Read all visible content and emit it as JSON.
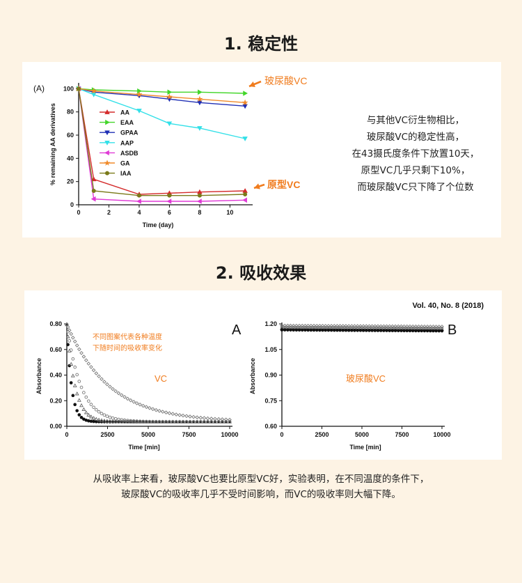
{
  "section1": {
    "title": "1. 稳定性"
  },
  "section2": {
    "title": "2. 吸收效果"
  },
  "description": [
    "与其他VC衍生物相比，",
    "玻尿酸VC的稳定性高，",
    "在43摄氏度条件下放置10天，",
    "原型VC几乎只剩下10%，",
    "而玻尿酸VC只下降了个位数"
  ],
  "footer": [
    "从吸收率上来看，玻尿酸VC也要比原型VC好，实验表明，在不同温度的条件下，",
    "玻尿酸VC的吸收率几乎不受时间影响，而VC的吸收率则大幅下降。"
  ],
  "colors": {
    "accent": "#f07c1e",
    "background": "#fdf3e4"
  },
  "chart_data": [
    {
      "type": "line",
      "panel_label": "(A)",
      "xlabel": "Time (day)",
      "ylabel": "% remaining AA derivatives",
      "x": [
        0,
        1,
        4,
        6,
        8,
        11
      ],
      "xlim": [
        0,
        11.5
      ],
      "ylim": [
        0,
        105
      ],
      "xticks": [
        "0",
        "2",
        "4",
        "6",
        "8",
        "10"
      ],
      "yticks": [
        "0",
        "20",
        "40",
        "60",
        "80",
        "100"
      ],
      "legend_position": "center-left",
      "series": [
        {
          "name": "AA",
          "color": "#d42b2b",
          "marker": "triangle-up",
          "values": [
            100,
            22,
            9,
            10,
            11,
            12
          ]
        },
        {
          "name": "EAA",
          "color": "#43d62a",
          "marker": "triangle-right",
          "values": [
            100,
            99,
            98,
            97,
            97,
            96
          ]
        },
        {
          "name": "GPAA",
          "color": "#1f2fb5",
          "marker": "triangle-down",
          "values": [
            100,
            97,
            94,
            91,
            88,
            85
          ]
        },
        {
          "name": "AAP",
          "color": "#33e0e8",
          "marker": "triangle-down",
          "values": [
            100,
            95,
            81,
            70,
            66,
            57
          ]
        },
        {
          "name": "ASDB",
          "color": "#e03bd6",
          "marker": "triangle-left",
          "values": [
            100,
            5,
            3,
            3,
            3,
            4
          ]
        },
        {
          "name": "GA",
          "color": "#f08a2a",
          "marker": "star",
          "values": [
            100,
            98,
            95,
            93,
            91,
            88
          ]
        },
        {
          "name": "IAA",
          "color": "#7a7a1a",
          "marker": "circle",
          "values": [
            100,
            12,
            8,
            8,
            8,
            9
          ]
        }
      ],
      "annotations": {
        "top_arrow_label": "玻尿酸VC",
        "bottom_arrow_label": "原型VC"
      }
    },
    {
      "type": "scatter",
      "panel_label": "A",
      "journal_ref": "Vol. 40, No. 8 (2018)",
      "xlabel": "Time [min]",
      "ylabel": "Absorbance",
      "xlim": [
        0,
        10000
      ],
      "ylim": [
        0,
        0.8
      ],
      "xticks": [
        "0",
        "2500",
        "5000",
        "7500",
        "10000"
      ],
      "yticks": [
        "0.00",
        "0.20",
        "0.40",
        "0.60",
        "0.80"
      ],
      "note_line1": "不同图案代表各种温度",
      "note_line2": "下随时间的吸收率变化",
      "series_label": "VC",
      "series": [
        {
          "marker": "filled-circle",
          "decay_halflife_min": 200
        },
        {
          "marker": "filled-triangle",
          "decay_halflife_min": 350
        },
        {
          "marker": "open-circle",
          "decay_halflife_min": 600
        },
        {
          "marker": "open-diamond",
          "decay_halflife_min": 1800
        }
      ]
    },
    {
      "type": "scatter",
      "panel_label": "B",
      "xlabel": "Time [min]",
      "ylabel": "Absorbance",
      "xlim": [
        0,
        10000
      ],
      "ylim": [
        0.6,
        1.2
      ],
      "xticks": [
        "0",
        "2500",
        "5000",
        "7500",
        "10000"
      ],
      "yticks": [
        "0.60",
        "0.75",
        "0.90",
        "1.05",
        "1.20"
      ],
      "series_label": "玻尿酸VC",
      "series": [
        {
          "marker": "open-diamond",
          "level": 1.19
        },
        {
          "marker": "open-circle",
          "level": 1.18
        },
        {
          "marker": "filled-triangle",
          "level": 1.175
        },
        {
          "marker": "filled-circle",
          "level": 1.165
        }
      ]
    }
  ]
}
